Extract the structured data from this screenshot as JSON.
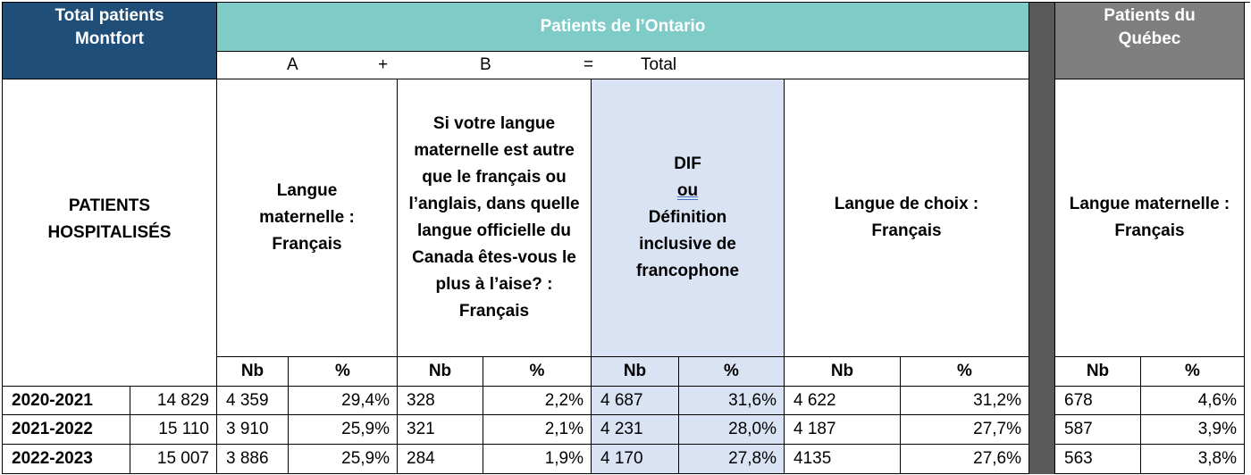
{
  "headers": {
    "montfort": "Total patients Montfort",
    "ontario": "Patients de l’Ontario",
    "quebec": "Patients du Québec",
    "formula": {
      "a": "A",
      "plus": "+",
      "b": "B",
      "equals": "=",
      "total": "Total"
    }
  },
  "categories": {
    "hospitalises": "PATIENTS HOSPITALISÉS",
    "langue_maternelle": "Langue maternelle : Français",
    "question_b": "Si votre langue maternelle est autre que le français ou l’anglais, dans quelle langue officielle du Canada êtes-vous le plus à l’aise? : Français",
    "dif": "DIF",
    "dif_ou": "ou",
    "dif_def": "Définition inclusive de francophone",
    "langue_choix": "Langue de choix : Français",
    "quebec_langue": "Langue maternelle : Français"
  },
  "subheaders": {
    "nb": "Nb",
    "pct": "%"
  },
  "rows": [
    {
      "year": "2020-2021",
      "total": "14 829",
      "a_nb": "4 359",
      "a_pct": "29,4%",
      "b_nb": "328",
      "b_pct": "2,2%",
      "dif_nb": "4 687",
      "dif_pct": "31,6%",
      "choix_nb": "4 622",
      "choix_pct": "31,2%",
      "qc_nb": "678",
      "qc_pct": "4,6%"
    },
    {
      "year": "2021-2022",
      "total": "15 110",
      "a_nb": "3 910",
      "a_pct": "25,9%",
      "b_nb": "321",
      "b_pct": "2,1%",
      "dif_nb": "4 231",
      "dif_pct": "28,0%",
      "choix_nb": "4 187",
      "choix_pct": "27,7%",
      "qc_nb": "587",
      "qc_pct": "3,9%"
    },
    {
      "year": "2022-2023",
      "total": "15 007",
      "a_nb": "3 886",
      "a_pct": "25,9%",
      "b_nb": "284",
      "b_pct": "1,9%",
      "dif_nb": "4 170",
      "dif_pct": "27,8%",
      "choix_nb": "4135",
      "choix_pct": "27,6%",
      "qc_nb": "563",
      "qc_pct": "3,8%"
    }
  ],
  "colors": {
    "montfort": "#1f4e79",
    "ontario": "#7ecbc7",
    "quebec": "#7f7f7f",
    "dif_highlight": "#dae3f3",
    "separator": "#595959"
  }
}
